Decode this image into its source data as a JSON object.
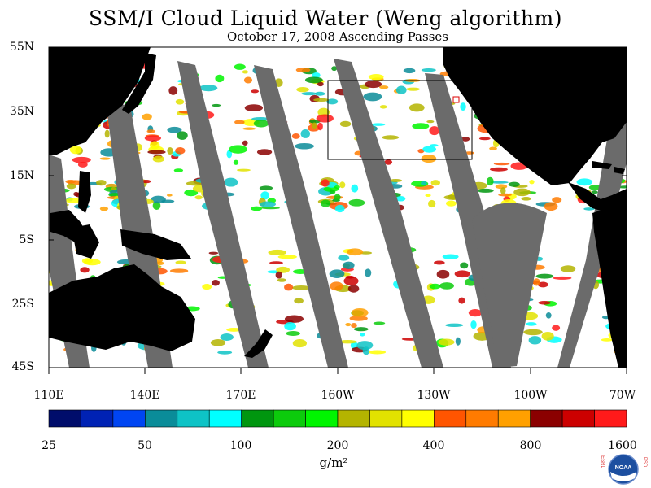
{
  "title": "SSM/I Cloud Liquid Water (Weng algorithm)",
  "subtitle": "October 17, 2008  Ascending Passes",
  "latitude_labels": [
    "55N",
    "35N",
    "15N",
    "5S",
    "25S",
    "45S"
  ],
  "longitude_labels": [
    "110E",
    "140E",
    "170E",
    "160W",
    "130W",
    "100W",
    "70W"
  ],
  "colorbar": {
    "colors": [
      "#000d6b",
      "#0022b4",
      "#0045f2",
      "#0a8c99",
      "#0ec3c6",
      "#00ffff",
      "#00960f",
      "#0ccb0c",
      "#00f500",
      "#b4b400",
      "#e2e200",
      "#ffff00",
      "#ff5500",
      "#ff7b00",
      "#ffa000",
      "#8b0000",
      "#cc0000",
      "#ff1a1a"
    ],
    "tick_labels": [
      "25",
      "50",
      "100",
      "200",
      "400",
      "800",
      "1600"
    ],
    "units": "g/m²"
  },
  "legend_colors": {
    "land": "#000000",
    "no_data_swath_gap": "#6b6b6b",
    "clear": "#ffffff"
  },
  "logo": {
    "text": "NOAA",
    "left_letters": "ESRL",
    "right_letters": "PSD"
  }
}
